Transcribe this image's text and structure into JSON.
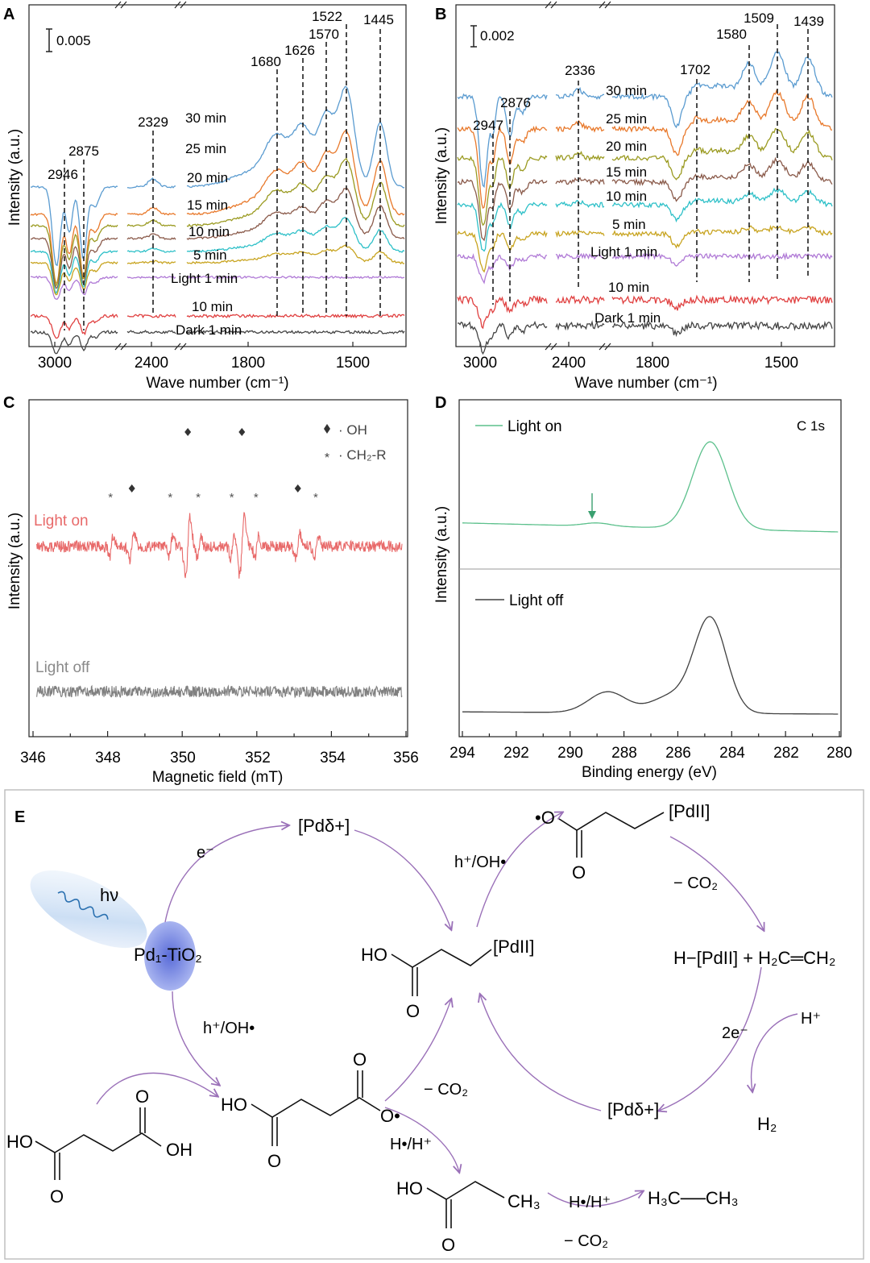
{
  "colors": {
    "30 min": "#5a9bd0",
    "25 min": "#e8782a",
    "20 min": "#9a9a20",
    "15 min": "#8a5a4a",
    "10 min": "#2ec0c8",
    "5 min": "#c8a420",
    "Light 1 min": "#b07ad6",
    "Dark 10 min": "#e04040",
    "Dark 1 min": "#444444",
    "esr_on": "#e86a6a",
    "esr_off": "#808080",
    "xps_on": "#5cc08c",
    "xps_off": "#404040",
    "arrow": "#9a70b8",
    "blob": "#6a7fd8"
  },
  "chart_data": [
    {
      "panel": "A",
      "type": "line",
      "xlabel": "Wave number (cm⁻¹)",
      "ylabel": "Intensity (a.u.)",
      "scale_bar": "0.005",
      "x_ticks": [
        "3000",
        "2400",
        "1800",
        "1500"
      ],
      "peaks": [
        "2946",
        "2875",
        "2329",
        "1680",
        "1626",
        "1570",
        "1522",
        "1445"
      ],
      "series": [
        "30 min",
        "25 min",
        "20 min",
        "15 min",
        "10 min",
        "5 min",
        "Light 1 min",
        "10 min",
        "Dark 1 min"
      ]
    },
    {
      "panel": "B",
      "type": "line",
      "xlabel": "Wave number (cm⁻¹)",
      "ylabel": "Intensity (a.u.)",
      "scale_bar": "0.002",
      "x_ticks": [
        "3000",
        "2400",
        "1800",
        "1500"
      ],
      "peaks": [
        "2947",
        "2876",
        "2336",
        "1702",
        "1580",
        "1509",
        "1439"
      ],
      "series": [
        "30 min",
        "25 min",
        "20 min",
        "15 min",
        "10 min",
        "5 min",
        "Light 1 min",
        "10 min",
        "Dark 1 min"
      ]
    },
    {
      "panel": "C",
      "type": "line",
      "xlabel": "Magnetic field (mT)",
      "ylabel": "Intensity (a.u.)",
      "xlim": [
        346,
        356
      ],
      "x_ticks": [
        "346",
        "348",
        "350",
        "352",
        "354",
        "356"
      ],
      "legend": [
        "· OH",
        "· CH₂-R"
      ],
      "series": [
        "Light on",
        "Light off"
      ],
      "oh_peaks_mT": [
        348.65,
        350.15,
        351.6,
        353.1
      ],
      "ch2r_peaks_mT": [
        348.1,
        349.7,
        350.45,
        351.35,
        352.0,
        353.6
      ]
    },
    {
      "panel": "D",
      "type": "line",
      "xlabel": "Binding energy (eV)",
      "ylabel": "Intensity (a.u.)",
      "xlim": [
        294,
        280
      ],
      "x_ticks": [
        "294",
        "292",
        "290",
        "288",
        "286",
        "284",
        "282",
        "280"
      ],
      "title": "C 1s",
      "series": [
        "Light on",
        "Light off"
      ],
      "peak_light_on_eV": 284.8,
      "peaks_light_off_eV": [
        288.6,
        284.8
      ]
    }
  ],
  "panelE": {
    "letter": "E",
    "hv": "hν",
    "catalyst": "Pd₁-TiO₂",
    "e_minus": "e⁻",
    "pd_delta_top": "[Pdδ+]",
    "h_oh_left": "h⁺/OH•",
    "h_oh_center": "h⁺/OH•",
    "pd_ii_center": "[PdII]",
    "ho_center": "HO",
    "o_center": "O",
    "radical_o": "•O",
    "o_radical_top_below": "O",
    "pd_ii_top": "[PdII]",
    "minus_co2_right": "− CO₂",
    "h_pd_ethylene": "H−[PdII] + H₂C═CH₂",
    "two_e": "2e⁻",
    "h_plus": "H⁺",
    "h2": "H₂",
    "pd_delta_bottom": "[Pdδ+]",
    "succinic_ho": "HO",
    "succinic_oh": "OH",
    "succinic_o1": "O",
    "succinic_o2": "O",
    "rad_ho": "HO",
    "rad_o_top": "O",
    "rad_o_bottom": "O",
    "rad_o_dot": "O•",
    "minus_co2_mid": "− CO₂",
    "h_rad_h": "H•/H⁺",
    "prop_ho": "HO",
    "prop_ch3": "CH₃",
    "prop_o": "O",
    "h_rad_h2": "H•/H⁺",
    "minus_co2_bottom": "− CO₂",
    "ethane": "H₃C──CH₃"
  }
}
